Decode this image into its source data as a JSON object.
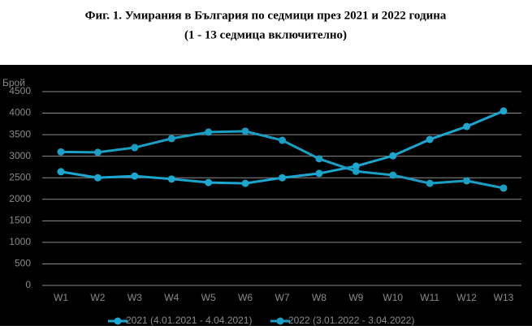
{
  "chart_data": {
    "type": "line",
    "title": "Фиг. 1. Умирания в България по седмици през 2021 и 2022 година",
    "subtitle": "(1 - 13 седмица включително)",
    "y_label": "Брой",
    "categories": [
      "W1",
      "W2",
      "W3",
      "W4",
      "W5",
      "W6",
      "W7",
      "W8",
      "W9",
      "W10",
      "W11",
      "W12",
      "W13"
    ],
    "series": [
      {
        "name": "2021 (4.01.2021 - 4.04.2021)",
        "color": "#1ba7cf",
        "values": [
          2640,
          2500,
          2540,
          2470,
          2390,
          2370,
          2500,
          2600,
          2770,
          3010,
          3390,
          3690,
          4050
        ]
      },
      {
        "name": "2022 (3.01.2022 - 3.04.2022)",
        "color": "#1a9fc4",
        "values": [
          3100,
          3090,
          3200,
          3410,
          3560,
          3580,
          3370,
          2940,
          2650,
          2560,
          2370,
          2430,
          2260
        ]
      }
    ],
    "ylim": [
      0,
      4500
    ],
    "yticks": [
      0,
      500,
      1000,
      1500,
      2000,
      2500,
      3000,
      3500,
      4000,
      4500
    ],
    "grid": true
  }
}
